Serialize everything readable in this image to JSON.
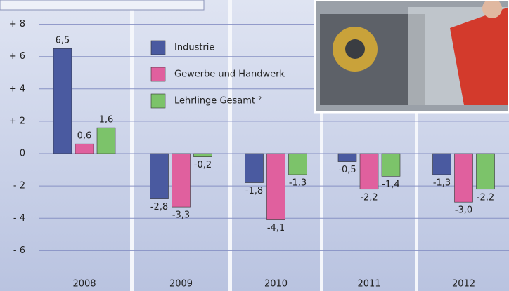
{
  "chart_data": {
    "type": "bar",
    "categories": [
      "2008",
      "2009",
      "2010",
      "2011",
      "2012"
    ],
    "series": [
      {
        "name": "Industrie",
        "color": "#4a5aa0",
        "values": [
          6.5,
          -2.8,
          -1.8,
          -0.5,
          -1.3
        ],
        "value_labels": [
          "6,5",
          "-2,8",
          "-1,8",
          "-0,5",
          "-1,3"
        ]
      },
      {
        "name": "Gewerbe und Handwerk",
        "color": "#e0609e",
        "values": [
          0.6,
          -3.3,
          -4.1,
          -2.2,
          -3.0
        ],
        "value_labels": [
          "0,6",
          "-3,3",
          "-4,1",
          "-2,2",
          "-3,0"
        ]
      },
      {
        "name": "Lehrlinge Gesamt ²",
        "color": "#7cc36a",
        "values": [
          1.6,
          -0.2,
          -1.3,
          -1.4,
          -2.2
        ],
        "value_labels": [
          "1,6",
          "-0,2",
          "-1,3",
          "-1,4",
          "-2,2"
        ]
      }
    ],
    "ylim": [
      -8.5,
      9.5
    ],
    "yticks": [
      {
        "value": 8,
        "label": "+ 8"
      },
      {
        "value": 6,
        "label": "+ 6"
      },
      {
        "value": 4,
        "label": "+ 4"
      },
      {
        "value": 2,
        "label": "+ 2"
      },
      0,
      {
        "value": -2,
        "label": "- 2"
      },
      {
        "value": -4,
        "label": "- 4"
      },
      {
        "value": -6,
        "label": "- 6"
      }
    ],
    "grid": true
  }
}
